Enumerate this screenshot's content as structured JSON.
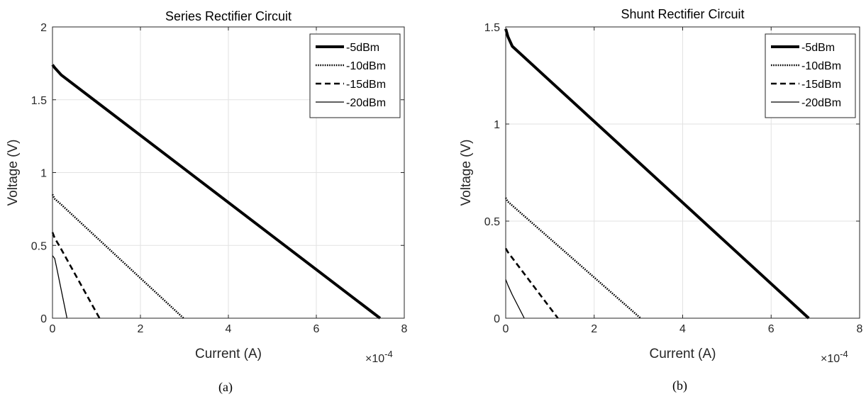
{
  "chart_data": [
    {
      "type": "line",
      "title": "Series Rectifier Circuit",
      "xlabel": "Current (A)",
      "ylabel": "Voltage (V)",
      "x_scale_base": "10",
      "x_scale_exponent": "-4",
      "xlim": [
        0,
        8
      ],
      "ylim": [
        0,
        2
      ],
      "xticks": [
        0,
        2,
        4,
        6,
        8
      ],
      "yticks": [
        0,
        0.5,
        1,
        1.5,
        2
      ],
      "xtick_labels": [
        "0",
        "2",
        "4",
        "6",
        "8"
      ],
      "ytick_labels": [
        "0",
        "0.5",
        "1",
        "1.5",
        "2"
      ],
      "grid": true,
      "legend_position": "top-right",
      "series": [
        {
          "name": "-5dBm",
          "style": "solid-thick",
          "x": [
            0,
            0.05,
            0.2,
            7.45
          ],
          "y": [
            1.74,
            1.72,
            1.67,
            0
          ]
        },
        {
          "name": "-10dBm",
          "style": "dotted",
          "x": [
            0,
            0.05,
            0.2,
            2.98
          ],
          "y": [
            0.85,
            0.82,
            0.78,
            0
          ]
        },
        {
          "name": "-15dBm",
          "style": "dashed",
          "x": [
            0,
            0.05,
            0.15,
            1.07
          ],
          "y": [
            0.59,
            0.55,
            0.5,
            0
          ]
        },
        {
          "name": "-20dBm",
          "style": "solid-thin",
          "x": [
            0,
            0.05,
            0.1,
            0.33
          ],
          "y": [
            0.43,
            0.41,
            0.34,
            0
          ]
        }
      ],
      "caption": "(a)"
    },
    {
      "type": "line",
      "title": "Shunt Rectifier Circuit",
      "xlabel": "Current (A)",
      "ylabel": "Voltage (V)",
      "x_scale_base": "10",
      "x_scale_exponent": "-4",
      "xlim": [
        0,
        8
      ],
      "ylim": [
        0,
        1.5
      ],
      "xticks": [
        0,
        2,
        4,
        6,
        8
      ],
      "yticks": [
        0,
        0.5,
        1,
        1.5
      ],
      "xtick_labels": [
        "0",
        "2",
        "4",
        "6",
        "8"
      ],
      "ytick_labels": [
        "0",
        "0.5",
        "1",
        "1.5"
      ],
      "grid": true,
      "legend_position": "top-right",
      "series": [
        {
          "name": "-5dBm",
          "style": "solid-thick",
          "x": [
            0,
            0.05,
            0.15,
            6.85
          ],
          "y": [
            1.49,
            1.45,
            1.4,
            0
          ]
        },
        {
          "name": "-10dBm",
          "style": "dotted",
          "x": [
            0,
            0.05,
            0.15,
            3.05
          ],
          "y": [
            0.62,
            0.6,
            0.58,
            0
          ]
        },
        {
          "name": "-15dBm",
          "style": "dashed",
          "x": [
            0,
            0.05,
            0.15,
            1.18
          ],
          "y": [
            0.36,
            0.34,
            0.31,
            0
          ]
        },
        {
          "name": "-20dBm",
          "style": "solid-thin",
          "x": [
            0,
            0.05,
            0.15,
            0.42
          ],
          "y": [
            0.2,
            0.17,
            0.12,
            0
          ]
        }
      ],
      "caption": "(b)"
    }
  ]
}
